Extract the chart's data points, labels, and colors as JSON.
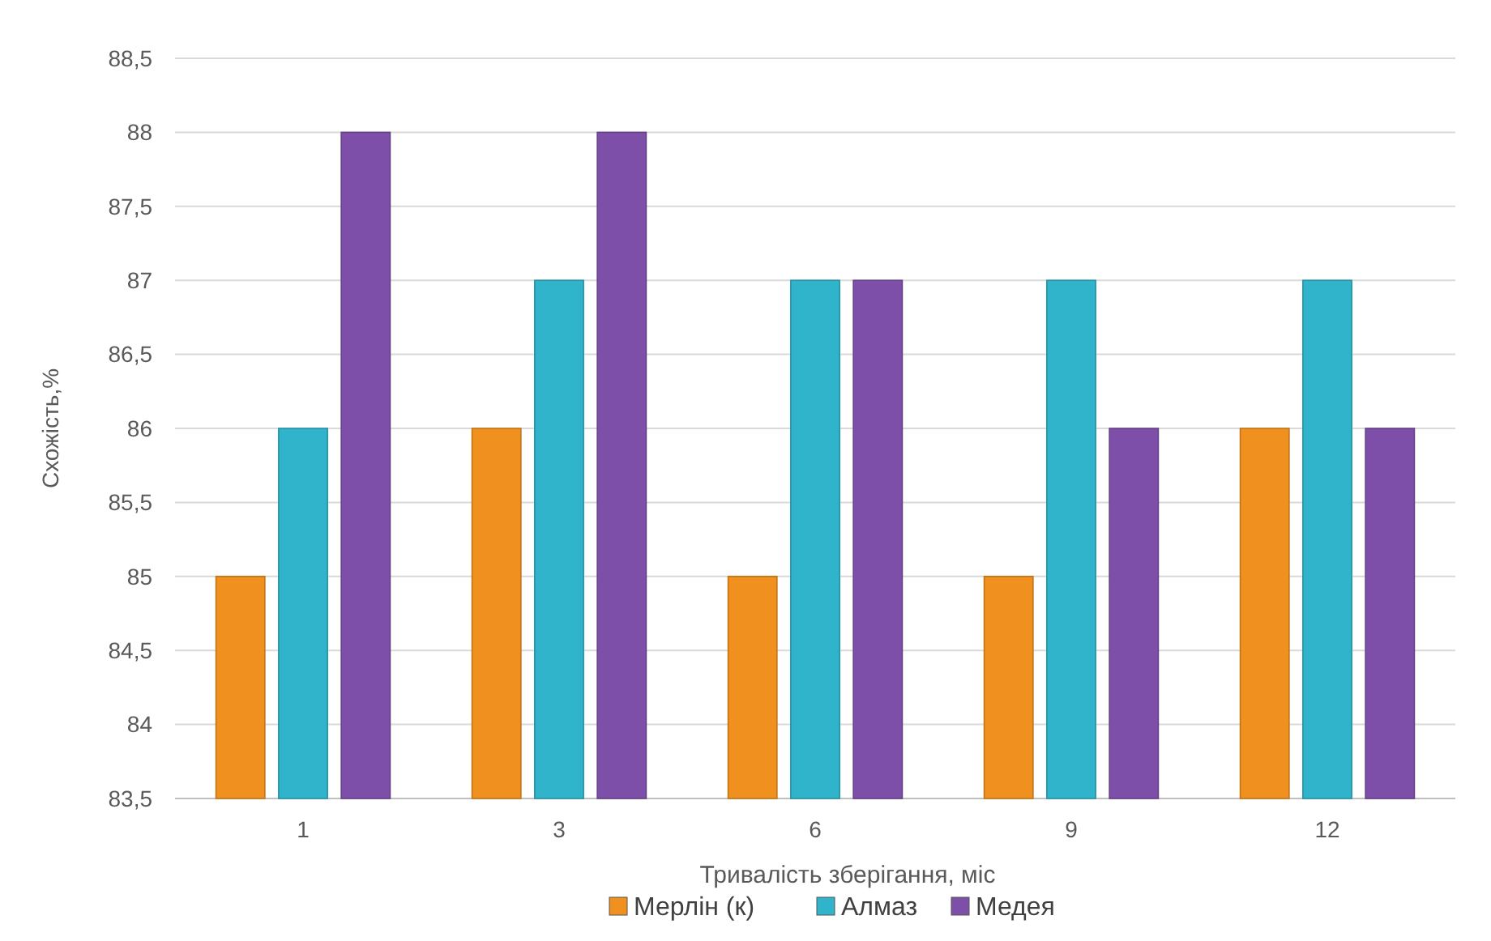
{
  "chart_data": {
    "type": "bar",
    "xlabel": "Тривалість зберігання, міс",
    "ylabel": "Схожість,%",
    "categories": [
      "1",
      "3",
      "6",
      "9",
      "12"
    ],
    "series": [
      {
        "name": "Мерлін (к)",
        "color": "#f0901e",
        "values": [
          85,
          86,
          85,
          85,
          86
        ]
      },
      {
        "name": "Алмаз",
        "color": "#2fb4cc",
        "values": [
          86,
          87,
          87,
          87,
          87
        ]
      },
      {
        "name": "Медея",
        "color": "#7d4fa8",
        "values": [
          88,
          88,
          87,
          86,
          86
        ]
      }
    ],
    "ylim": [
      83.5,
      88.5
    ],
    "yticks": [
      {
        "value": 83.5,
        "label": "83,5"
      },
      84,
      {
        "value": 84.5,
        "label": "84,5"
      },
      85,
      {
        "value": 85.5,
        "label": "85,5"
      },
      86,
      {
        "value": 86.5,
        "label": "86,5"
      },
      87,
      {
        "value": 87.5,
        "label": "87,5"
      },
      88,
      {
        "value": 88.5,
        "label": "88,5"
      }
    ],
    "grid": "y",
    "legend": "bottom"
  }
}
